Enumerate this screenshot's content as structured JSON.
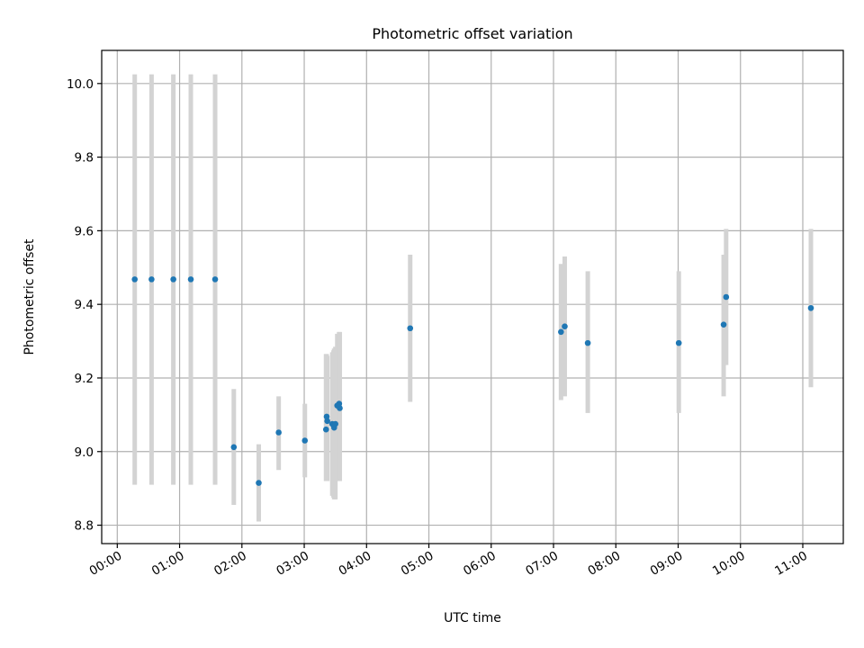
{
  "chart_data": {
    "type": "scatter",
    "title": "Photometric offset variation",
    "xlabel": "UTC time",
    "ylabel": "Photometric offset",
    "xlim": [
      -0.25,
      11.65
    ],
    "ylim": [
      8.75,
      10.09
    ],
    "grid": true,
    "x_unit": "hours UTC",
    "x_ticks": [
      0,
      1,
      2,
      3,
      4,
      5,
      6,
      7,
      8,
      9,
      10,
      11
    ],
    "x_tick_labels": [
      "00:00",
      "01:00",
      "02:00",
      "03:00",
      "04:00",
      "05:00",
      "06:00",
      "07:00",
      "08:00",
      "09:00",
      "10:00",
      "11:00"
    ],
    "y_ticks": [
      8.8,
      9.0,
      9.2,
      9.4,
      9.6,
      9.8,
      10.0
    ],
    "y_tick_labels": [
      "8.8",
      "9.0",
      "9.2",
      "9.4",
      "9.6",
      "9.8",
      "10.0"
    ],
    "colors": {
      "points": "#1f77b4",
      "error_bars": "#d3d3d3",
      "grid": "#b0b0b0"
    },
    "series": [
      {
        "x": [
          0.28,
          0.55,
          0.9,
          1.18,
          1.57,
          1.87,
          2.27,
          2.59,
          3.01,
          3.35,
          3.36,
          3.37,
          3.45,
          3.47,
          3.48,
          3.5,
          3.53,
          3.56,
          3.57,
          4.7,
          7.12,
          7.18,
          7.55,
          9.01,
          9.73,
          9.77,
          11.13
        ],
        "y": [
          9.468,
          9.468,
          9.468,
          9.468,
          9.468,
          9.012,
          8.915,
          9.052,
          9.03,
          9.06,
          9.095,
          9.083,
          9.075,
          9.072,
          9.065,
          9.075,
          9.125,
          9.13,
          9.118,
          9.335,
          9.325,
          9.34,
          9.295,
          9.295,
          9.345,
          9.42,
          9.39
        ],
        "yerr_low": [
          8.91,
          8.91,
          8.91,
          8.91,
          8.91,
          8.855,
          8.81,
          8.95,
          8.93,
          8.92,
          8.93,
          8.92,
          8.88,
          8.875,
          8.87,
          8.87,
          8.96,
          8.92,
          8.92,
          9.135,
          9.14,
          9.15,
          9.105,
          9.105,
          9.15,
          9.235,
          9.175
        ],
        "yerr_high": [
          10.025,
          10.025,
          10.025,
          10.025,
          10.025,
          9.17,
          9.02,
          9.15,
          9.13,
          9.265,
          9.265,
          9.26,
          9.27,
          9.275,
          9.28,
          9.285,
          9.32,
          9.325,
          9.325,
          9.535,
          9.51,
          9.53,
          9.49,
          9.49,
          9.535,
          9.605,
          9.605
        ]
      }
    ]
  }
}
